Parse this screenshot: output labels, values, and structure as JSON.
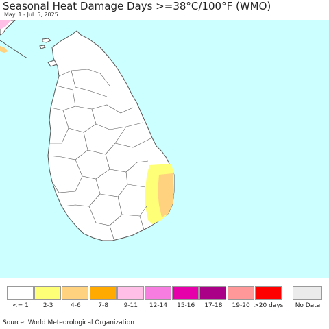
{
  "header": {
    "title": "Seasonal Heat Damage Days >=38°C/100°F (WMO)",
    "subtitle": "May. 1 - Jul. 5, 2025"
  },
  "map": {
    "region": "Sri Lanka",
    "colors": {
      "ocean": "#ccffff",
      "land": "#ffffff",
      "border": "#555555",
      "class_2_3": "#ffff77",
      "class_4_6": "#ffd27f"
    }
  },
  "legend": {
    "items": [
      {
        "label": "<= 1",
        "color": "#ffffff"
      },
      {
        "label": "2-3",
        "color": "#ffff77"
      },
      {
        "label": "4-6",
        "color": "#ffd27f"
      },
      {
        "label": "7-8",
        "color": "#ffaa00"
      },
      {
        "label": "9-11",
        "color": "#ffbfe6"
      },
      {
        "label": "12-14",
        "color": "#f77de0"
      },
      {
        "label": "15-16",
        "color": "#e600aa"
      },
      {
        "label": "17-18",
        "color": "#aa0088"
      },
      {
        "label": "19-20",
        "color": "#ff9999"
      },
      {
        "label": ">20 days",
        "color": "#ff0000"
      }
    ],
    "no_data": {
      "label": "No Data",
      "color": "#ebebeb"
    }
  },
  "footer": {
    "source": "Source: World Meteorological Organization"
  }
}
